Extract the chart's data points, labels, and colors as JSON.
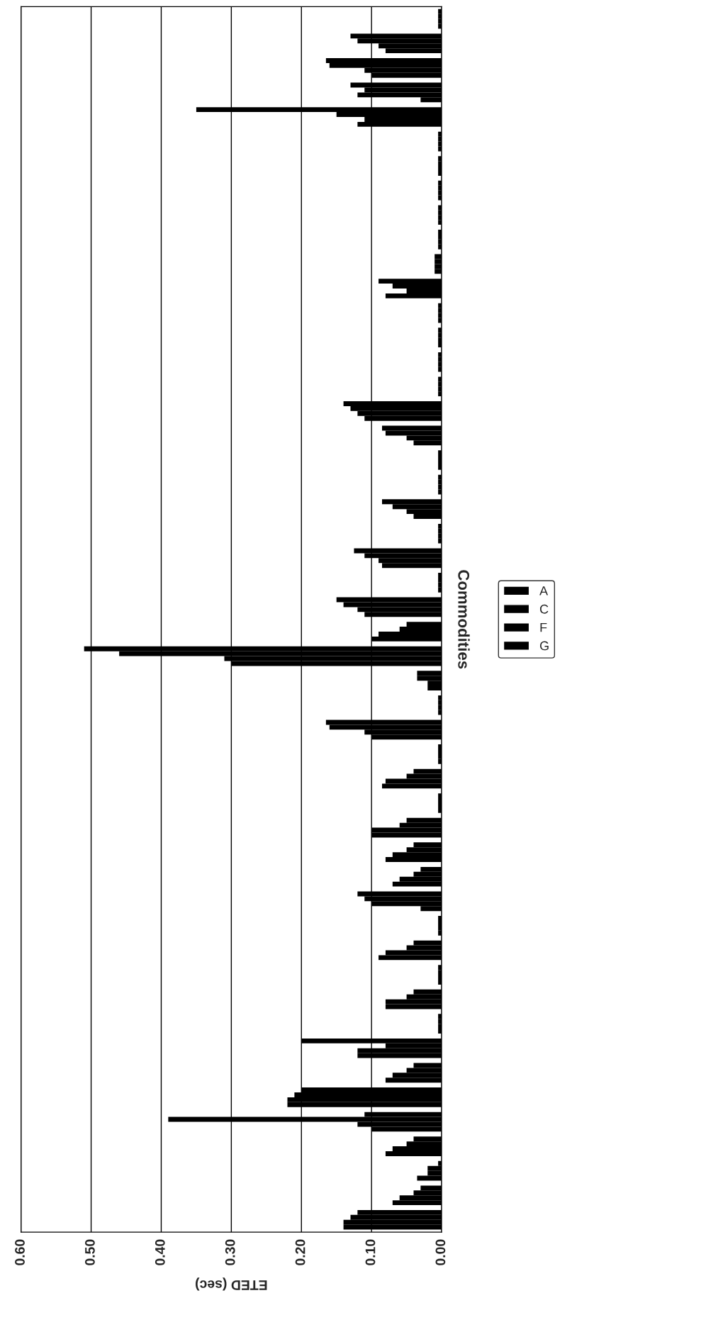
{
  "chart_data": {
    "type": "bar",
    "orientation": "horizontal",
    "xlabel": "ETED (sec)",
    "ylabel": "Commodities",
    "categories": [
      null,
      null,
      null,
      null,
      null,
      null,
      null,
      null,
      null,
      null,
      null,
      null,
      null,
      null,
      null,
      null,
      null,
      null,
      null,
      null,
      null,
      null,
      null,
      null,
      null,
      null,
      null,
      null,
      null,
      null,
      null,
      null,
      null,
      null,
      null,
      null,
      null,
      null,
      null,
      null,
      null,
      null,
      null,
      null,
      null,
      null,
      null,
      null,
      null,
      null
    ],
    "series": [
      {
        "name": "G",
        "color": "#000000",
        "values": [
          0.005,
          0.13,
          0.165,
          0.13,
          0.35,
          0.005,
          0.005,
          0.005,
          0.005,
          0.005,
          0.01,
          0.09,
          0.005,
          0.005,
          0.005,
          0.005,
          0.14,
          0.085,
          0.005,
          0.005,
          0.085,
          0.005,
          0.125,
          0.005,
          0.15,
          0.05,
          0.51,
          0.035,
          0.005,
          0.165,
          0.005,
          0.04,
          0.005,
          0.05,
          0.04,
          0.03,
          0.12,
          0.005,
          0.04,
          0.005,
          0.04,
          0.005,
          0.2,
          0.04,
          0.2,
          0.11,
          0.04,
          0.005,
          0.03,
          0.12
        ]
      },
      {
        "name": "F",
        "color": "#000000",
        "values": [
          0.005,
          0.12,
          0.16,
          0.11,
          0.15,
          0.005,
          0.005,
          0.005,
          0.005,
          0.005,
          0.01,
          0.07,
          0.005,
          0.005,
          0.005,
          0.005,
          0.13,
          0.08,
          0.005,
          0.005,
          0.07,
          0.005,
          0.11,
          0.005,
          0.14,
          0.06,
          0.46,
          0.035,
          0.005,
          0.16,
          0.005,
          0.05,
          0.005,
          0.06,
          0.05,
          0.04,
          0.11,
          0.005,
          0.05,
          0.005,
          0.05,
          0.005,
          0.08,
          0.05,
          0.21,
          0.39,
          0.05,
          0.02,
          0.04,
          0.13
        ]
      },
      {
        "name": "C",
        "color": "#000000",
        "values": [
          0.005,
          0.09,
          0.11,
          0.12,
          0.11,
          0.005,
          0.005,
          0.005,
          0.005,
          0.005,
          0.01,
          0.05,
          0.005,
          0.005,
          0.005,
          0.005,
          0.12,
          0.05,
          0.005,
          0.005,
          0.05,
          0.005,
          0.09,
          0.005,
          0.12,
          0.09,
          0.31,
          0.02,
          0.005,
          0.11,
          0.005,
          0.08,
          0.005,
          0.1,
          0.07,
          0.06,
          0.1,
          0.005,
          0.08,
          0.005,
          0.08,
          0.005,
          0.12,
          0.07,
          0.22,
          0.12,
          0.07,
          0.02,
          0.06,
          0.14
        ]
      },
      {
        "name": "A",
        "color": "#000000",
        "values": [
          0.005,
          0.08,
          0.1,
          0.03,
          0.12,
          0.005,
          0.005,
          0.005,
          0.005,
          0.005,
          0.01,
          0.08,
          0.005,
          0.005,
          0.005,
          0.005,
          0.11,
          0.04,
          0.005,
          0.005,
          0.04,
          0.005,
          0.085,
          0.005,
          0.11,
          0.1,
          0.3,
          0.02,
          0.005,
          0.1,
          0.005,
          0.085,
          0.005,
          0.1,
          0.08,
          0.07,
          0.03,
          0.005,
          0.09,
          0.005,
          0.08,
          0.005,
          0.12,
          0.08,
          0.22,
          0.1,
          0.08,
          0.035,
          0.07,
          0.14
        ]
      }
    ],
    "xlim": [
      0.6,
      0.0
    ],
    "xticks": [
      {
        "value": 0.6,
        "label": "0.60"
      },
      {
        "value": 0.5,
        "label": "0.50"
      },
      {
        "value": 0.4,
        "label": "0.40"
      },
      {
        "value": 0.3,
        "label": "0.30"
      },
      {
        "value": 0.2,
        "label": "0.20"
      },
      {
        "value": 0.1,
        "label": "0.10"
      },
      {
        "value": 0.0,
        "label": "0.00"
      }
    ],
    "grid": "x",
    "legend": "right"
  }
}
